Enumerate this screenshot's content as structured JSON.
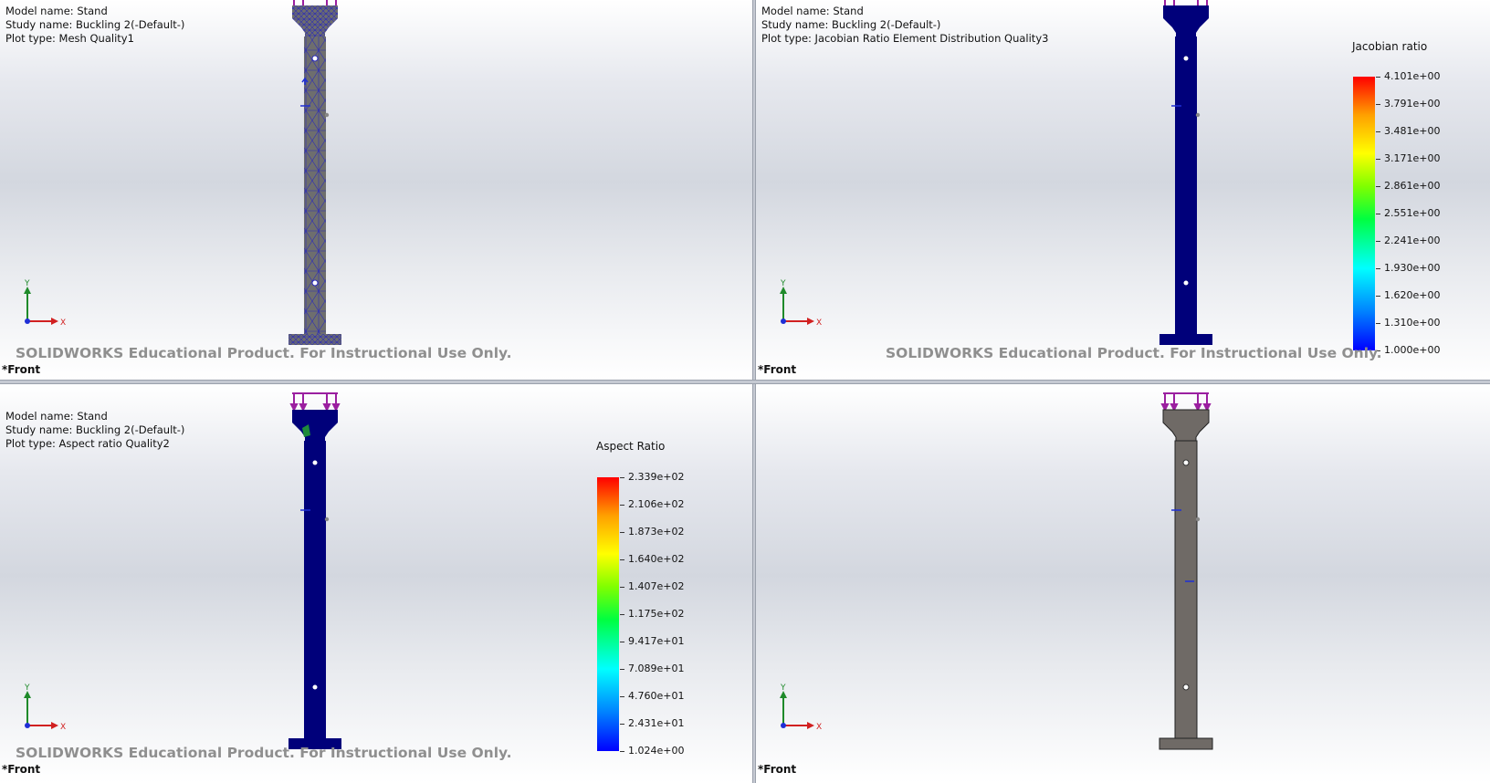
{
  "viewports": {
    "top_left": {
      "model_line": "Model name: Stand",
      "study_line": "Study name: Buckling 2(-Default-)",
      "plot_line": "Plot type: Mesh Quality1",
      "watermark": "SOLIDWORKS Educational Product. For Instructional Use Only.",
      "view_label": "*Front",
      "triad": {
        "y": "Y",
        "x": "X"
      }
    },
    "top_right": {
      "model_line": "Model name: Stand",
      "study_line": "Study name: Buckling 2(-Default-)",
      "plot_line": "Plot type: Jacobian Ratio Element Distribution Quality3",
      "watermark": "SOLIDWORKS Educational Product. For Instructional Use Only.",
      "view_label": "*Front",
      "triad": {
        "y": "Y",
        "x": "X"
      },
      "legend": {
        "title": "Jacobian ratio",
        "ticks": [
          "4.101e+00",
          "3.791e+00",
          "3.481e+00",
          "3.171e+00",
          "2.861e+00",
          "2.551e+00",
          "2.241e+00",
          "1.930e+00",
          "1.620e+00",
          "1.310e+00",
          "1.000e+00"
        ]
      }
    },
    "bottom_left": {
      "model_line": "Model name: Stand",
      "study_line": "Study name: Buckling 2(-Default-)",
      "plot_line": "Plot type: Aspect ratio Quality2",
      "watermark": "SOLIDWORKS Educational Product. For Instructional Use Only.",
      "view_label": "*Front",
      "triad": {
        "y": "Y",
        "x": "X"
      },
      "legend": {
        "title": "Aspect Ratio",
        "ticks": [
          "2.339e+02",
          "2.106e+02",
          "1.873e+02",
          "1.640e+02",
          "1.407e+02",
          "1.175e+02",
          "9.417e+01",
          "7.089e+01",
          "4.760e+01",
          "2.431e+01",
          "1.024e+00"
        ]
      }
    },
    "bottom_right": {
      "view_label": "*Front",
      "triad": {
        "y": "Y",
        "x": "X"
      }
    }
  },
  "colors": {
    "mesh_part": "#6e6e6e",
    "mesh_lines": "#2a2ab8",
    "plot_part": "#00007a",
    "plain_part": "#6f6a66",
    "load_arrow": "#9b1fa0",
    "fixture": "#1f2fd6",
    "triad_x": "#d12020",
    "triad_y": "#1f8a2a"
  }
}
